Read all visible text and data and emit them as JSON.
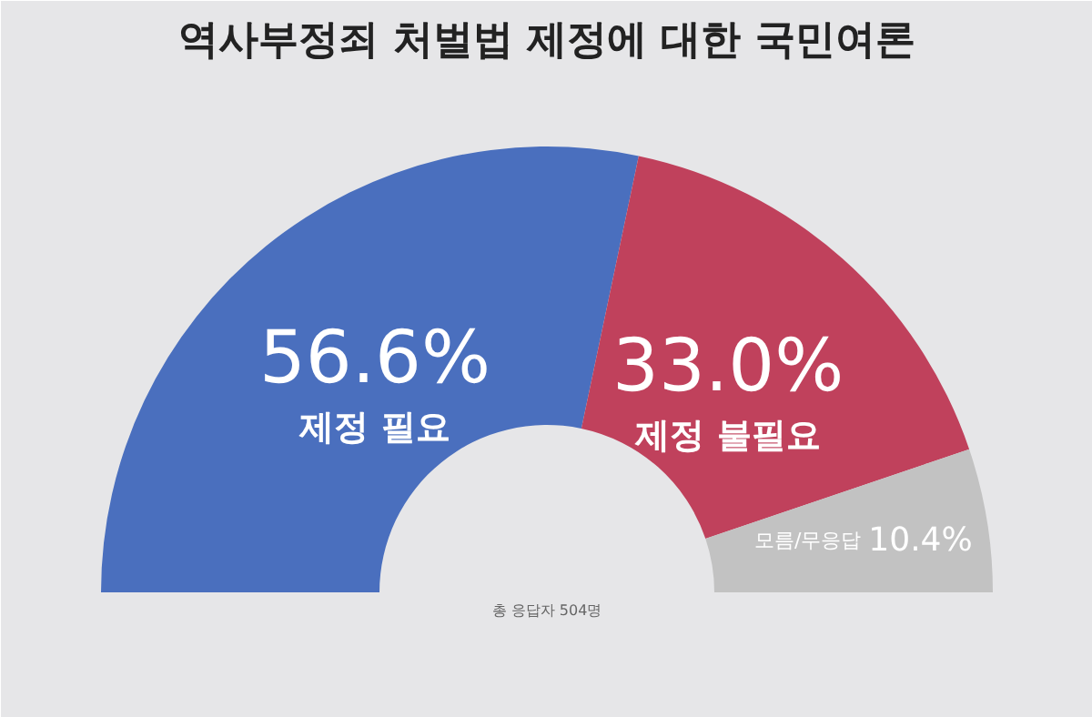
{
  "chart_data": {
    "type": "donut",
    "title": "역사부정죄 처벌법 제정에 대한 국민여론",
    "categories": [
      "제정 필요",
      "제정 불필요",
      "모름/무응답"
    ],
    "values": [
      56.6,
      33.0,
      10.4
    ],
    "value_labels": [
      "56.6%",
      "33.0%",
      "10.4%"
    ],
    "colors": [
      "#4a6fbe",
      "#c0415c",
      "#c2c2c2"
    ],
    "annotations": [
      "총 응답자 504명"
    ]
  }
}
